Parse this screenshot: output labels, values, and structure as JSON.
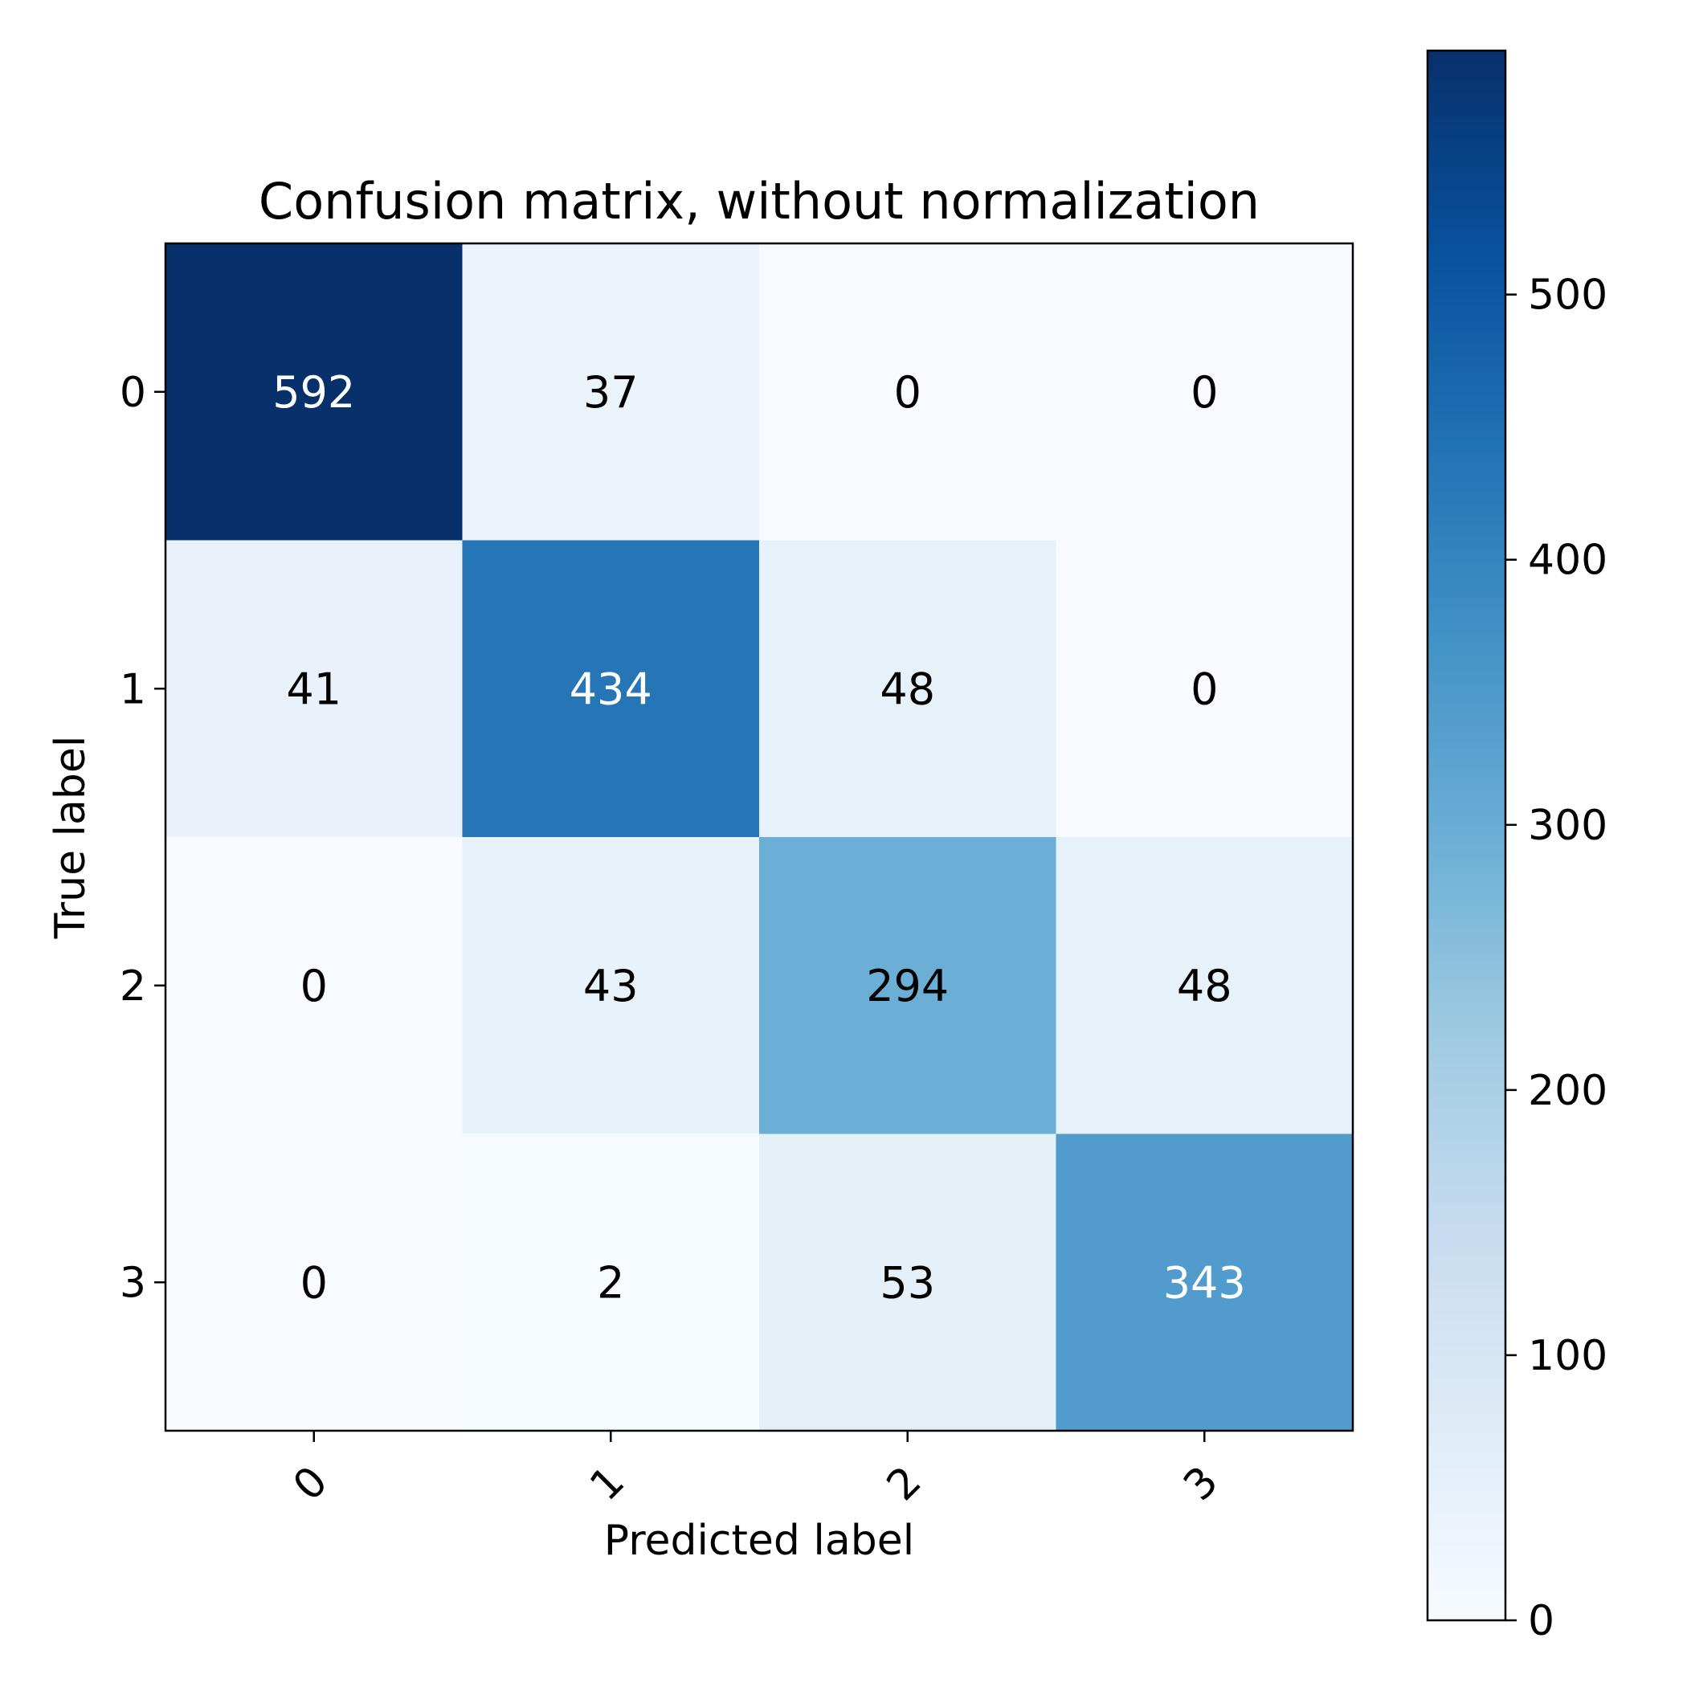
{
  "chart_data": {
    "type": "heatmap",
    "title": "Confusion matrix, without normalization",
    "xlabel": "Predicted label",
    "ylabel": "True label",
    "x_tick_labels": [
      "0",
      "1",
      "2",
      "3"
    ],
    "y_tick_labels": [
      "0",
      "1",
      "2",
      "3"
    ],
    "matrix": [
      [
        592,
        37,
        0,
        0
      ],
      [
        41,
        434,
        48,
        0
      ],
      [
        0,
        43,
        294,
        48
      ],
      [
        0,
        2,
        53,
        343
      ]
    ],
    "colormap": "Blues",
    "colorbar": {
      "min": 0,
      "max": 592,
      "ticks": [
        0,
        100,
        200,
        300,
        400,
        500
      ],
      "tick_labels": [
        "0",
        "100",
        "200",
        "300",
        "400",
        "500"
      ]
    },
    "text_colors": {
      "dark": "#000000",
      "light": "#ffffff"
    },
    "grid": false
  }
}
